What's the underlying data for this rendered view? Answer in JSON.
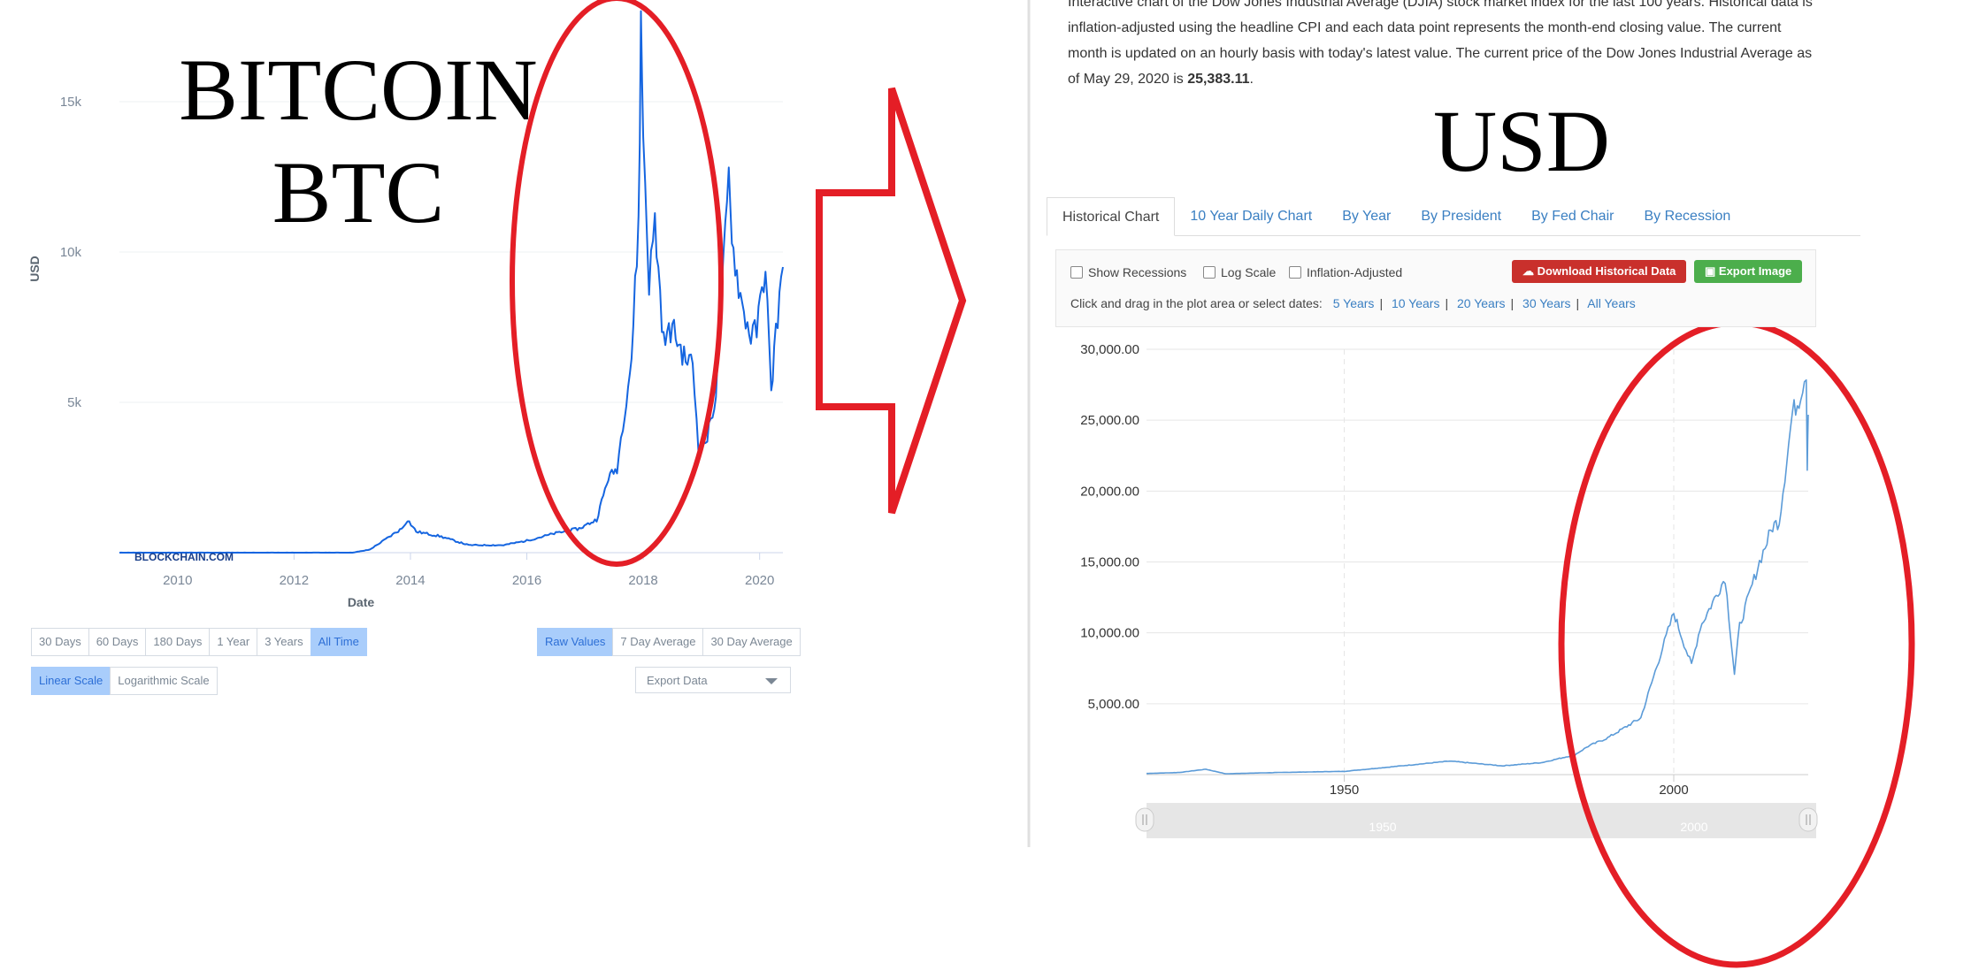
{
  "overlay": {
    "bitcoin_line1": "BITCOIN",
    "bitcoin_line2": "BTC",
    "usd_label": "USD"
  },
  "btc_panel": {
    "watermark": "BLOCKCHAIN.COM",
    "range_buttons": [
      "30 Days",
      "60 Days",
      "180 Days",
      "1 Year",
      "3 Years",
      "All Time"
    ],
    "active_range": "All Time",
    "value_buttons": [
      "Raw Values",
      "7 Day Average",
      "30 Day Average"
    ],
    "active_value": "Raw Values",
    "scale_buttons": [
      "Linear Scale",
      "Logarithmic Scale"
    ],
    "active_scale": "Linear Scale",
    "export_label": "Export Data"
  },
  "djia_panel": {
    "para_line1": "Interactive chart of the Dow Jones Industrial Average (DJIA) stock market index for the last 100 years. Historical data is",
    "para_line2": "inflation-adjusted using the headline CPI and each data point represents the month-end closing value. The current",
    "para_line3": "month is updated on an hourly basis with today's latest value. The current price of the Dow Jones Industrial Average as",
    "para_line4_prefix": "of May 29, 2020 is ",
    "para_line4_value": "25,383.11",
    "para_line4_suffix": ".",
    "tabs": [
      "Historical Chart",
      "10 Year Daily Chart",
      "By Year",
      "By President",
      "By Fed Chair",
      "By Recession"
    ],
    "active_tab": "Historical Chart",
    "checkboxes": [
      "Show Recessions",
      "Log Scale",
      "Inflation-Adjusted"
    ],
    "download_label": "Download Historical Data",
    "export_label": "Export Image",
    "date_prompt": "Click and drag in the plot area or select dates:",
    "date_links": [
      "5 Years",
      "10 Years",
      "20 Years",
      "30 Years",
      "All Years"
    ],
    "navigator_labels": [
      "1950",
      "2000"
    ]
  },
  "colors": {
    "btc_line": "#1565e0",
    "djia_line": "#5b9bd8",
    "annotation_red": "#e41e26",
    "download_btn": "#c9302c",
    "export_btn": "#4cae4c"
  },
  "chart_data": [
    {
      "type": "line",
      "title": "",
      "xlabel": "Date",
      "ylabel": "USD",
      "xlim": [
        2009,
        2020.4
      ],
      "ylim": [
        0,
        17500
      ],
      "x_ticks": [
        "2010",
        "2012",
        "2014",
        "2016",
        "2018",
        "2020"
      ],
      "y_ticks": [
        "5k",
        "10k",
        "15k"
      ],
      "grid": true,
      "series": [
        {
          "x": [
            2009.0,
            2013.0,
            2013.3,
            2013.85,
            2013.95,
            2014.1,
            2014.5,
            2015.0,
            2015.6,
            2016.0,
            2016.5,
            2016.9,
            2017.2,
            2017.4,
            2017.55,
            2017.65,
            2017.8,
            2017.92,
            2017.96,
            2018.0,
            2018.1,
            2018.2,
            2018.35,
            2018.5,
            2018.7,
            2018.85,
            2018.95,
            2019.0,
            2019.1,
            2019.25,
            2019.35,
            2019.47,
            2019.55,
            2019.7,
            2019.85,
            2019.95,
            2020.1,
            2020.2,
            2020.25,
            2020.4
          ],
          "y": [
            0,
            0,
            100,
            800,
            1100,
            700,
            550,
            250,
            250,
            400,
            650,
            800,
            1100,
            2500,
            2800,
            4300,
            6500,
            11000,
            17500,
            14000,
            9000,
            11000,
            7000,
            7500,
            6500,
            6300,
            3500,
            3600,
            3800,
            5300,
            8500,
            12500,
            10000,
            8200,
            7200,
            7400,
            9600,
            5200,
            6800,
            9500
          ]
        }
      ]
    },
    {
      "type": "line",
      "title": "",
      "xlabel": "",
      "ylabel": "",
      "xlim": [
        1920,
        2020.4
      ],
      "ylim": [
        0,
        30000
      ],
      "x_ticks": [
        "1950",
        "2000"
      ],
      "y_ticks": [
        "5,000.00",
        "10,000.00",
        "15,000.00",
        "20,000.00",
        "25,000.00",
        "30,000.00"
      ],
      "grid": true,
      "series": [
        {
          "x": [
            1920,
            1925,
            1929,
            1932,
            1940,
            1950,
            1955,
            1966,
            1974,
            1980,
            1985,
            1987,
            1990,
            1995,
            1998,
            2000,
            2001,
            2002.7,
            2004,
            2007.8,
            2009.2,
            2010,
            2013,
            2015,
            2016,
            2018,
            2019,
            2020.1,
            2020.25,
            2020.4
          ],
          "y": [
            80,
            150,
            380,
            60,
            150,
            230,
            450,
            950,
            620,
            850,
            1400,
            2000,
            2600,
            4000,
            8500,
            11400,
            10000,
            7700,
            10400,
            13900,
            7100,
            10500,
            15000,
            17500,
            17900,
            25500,
            26500,
            28500,
            22000,
            25383
          ]
        }
      ]
    }
  ]
}
